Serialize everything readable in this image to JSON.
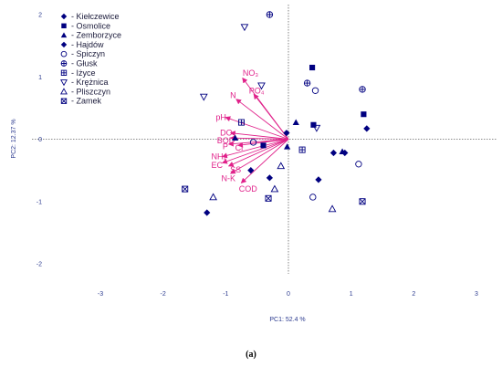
{
  "caption": "(a)",
  "chart_data": {
    "type": "scatter",
    "subtype": "pca-biplot",
    "xlabel": "PC1: 52.4 %",
    "ylabel": "PC2: 12.37 %",
    "xlim": [
      -3,
      3
    ],
    "ylim": [
      -2,
      2
    ],
    "xticks": [
      -3,
      -2,
      -1,
      0,
      1,
      2,
      3
    ],
    "yticks": [
      -2,
      -1,
      0,
      1,
      2
    ],
    "zero_lines": "dotted",
    "legend_position": "top-left",
    "colors": {
      "points": "#000080",
      "vectors": "#e0218a",
      "axis_text": "#2b3a8f"
    },
    "series": [
      {
        "name": "Kiełczewice",
        "marker": "filled-diamond",
        "points": [
          [
            -0.03,
            0.1
          ],
          [
            0.72,
            -0.22
          ],
          [
            0.9,
            -0.22
          ],
          [
            1.25,
            0.17
          ]
        ]
      },
      {
        "name": "Osmolice",
        "marker": "filled-square",
        "points": [
          [
            0.38,
            1.15
          ],
          [
            0.4,
            0.23
          ],
          [
            1.2,
            0.4
          ],
          [
            -0.4,
            -0.1
          ]
        ]
      },
      {
        "name": "Zemborzyce",
        "marker": "filled-triangle",
        "points": [
          [
            0.12,
            0.27
          ],
          [
            0.86,
            -0.2
          ],
          [
            -0.85,
            0.02
          ],
          [
            -0.02,
            -0.12
          ]
        ]
      },
      {
        "name": "Hajdów",
        "marker": "filled-diamond",
        "points": [
          [
            -1.3,
            -1.18
          ],
          [
            0.48,
            -0.65
          ],
          [
            -0.3,
            -0.62
          ],
          [
            -0.6,
            -0.5
          ]
        ]
      },
      {
        "name": "Spiczyn",
        "marker": "open-circle",
        "points": [
          [
            0.43,
            0.78
          ],
          [
            1.12,
            -0.4
          ],
          [
            0.39,
            -0.93
          ],
          [
            -0.56,
            -0.05
          ]
        ]
      },
      {
        "name": "Głusk",
        "marker": "crossed-circle",
        "points": [
          [
            -0.3,
            2.0
          ],
          [
            0.3,
            0.9
          ],
          [
            1.18,
            0.8
          ]
        ]
      },
      {
        "name": "Iżyce",
        "marker": "crossed-square",
        "points": [
          [
            -0.75,
            0.27
          ],
          [
            0.22,
            -0.17
          ]
        ]
      },
      {
        "name": "Krężnica",
        "marker": "open-triangle-down",
        "points": [
          [
            -0.7,
            1.8
          ],
          [
            -1.35,
            0.68
          ],
          [
            -0.43,
            0.86
          ],
          [
            0.45,
            0.18
          ]
        ]
      },
      {
        "name": "Pliszczyn",
        "marker": "open-triangle",
        "points": [
          [
            -1.2,
            -0.93
          ],
          [
            -0.22,
            -0.8
          ],
          [
            -0.12,
            -0.43
          ],
          [
            0.7,
            -1.12
          ]
        ]
      },
      {
        "name": "Zamek",
        "marker": "crossed-square-x",
        "points": [
          [
            -1.65,
            -0.8
          ],
          [
            -0.32,
            -0.95
          ],
          [
            1.18,
            -1.0
          ]
        ]
      }
    ],
    "vectors": [
      {
        "label": "NO₃",
        "x": -0.73,
        "y": 0.98,
        "label_dx": 0.0,
        "label_dy": 0.08
      },
      {
        "label": "PO₄",
        "x": -0.55,
        "y": 0.72,
        "label_dx": -0.08,
        "label_dy": 0.06
      },
      {
        "label": "N",
        "x": -0.83,
        "y": 0.64,
        "label_dx": -0.1,
        "label_dy": 0.06
      },
      {
        "label": "pH",
        "x": -1.0,
        "y": 0.35,
        "label_dx": -0.16,
        "label_dy": 0.0
      },
      {
        "label": "DO",
        "x": -0.92,
        "y": 0.1,
        "label_dx": -0.17,
        "label_dy": 0.0
      },
      {
        "label": "BOD",
        "x": -0.92,
        "y": 0.02,
        "label_dx": -0.22,
        "label_dy": -0.04
      },
      {
        "label": "P",
        "x": -0.95,
        "y": -0.08,
        "label_dx": -0.1,
        "label_dy": -0.04
      },
      {
        "label": "Cl",
        "x": -0.8,
        "y": -0.1,
        "label_dx": -0.05,
        "label_dy": -0.04
      },
      {
        "label": "NH₄",
        "x": -1.05,
        "y": -0.28,
        "label_dx": -0.18,
        "label_dy": 0.0
      },
      {
        "label": "EC",
        "x": -1.05,
        "y": -0.38,
        "label_dx": -0.18,
        "label_dy": -0.04
      },
      {
        "label": "SS",
        "x": -0.95,
        "y": -0.43,
        "label_dx": 0.02,
        "label_dy": -0.06
      },
      {
        "label": "N-K",
        "x": -0.92,
        "y": -0.55,
        "label_dx": -0.15,
        "label_dy": -0.08
      },
      {
        "label": "COD",
        "x": -0.75,
        "y": -0.7,
        "label_dx": -0.04,
        "label_dy": -0.1
      }
    ]
  }
}
